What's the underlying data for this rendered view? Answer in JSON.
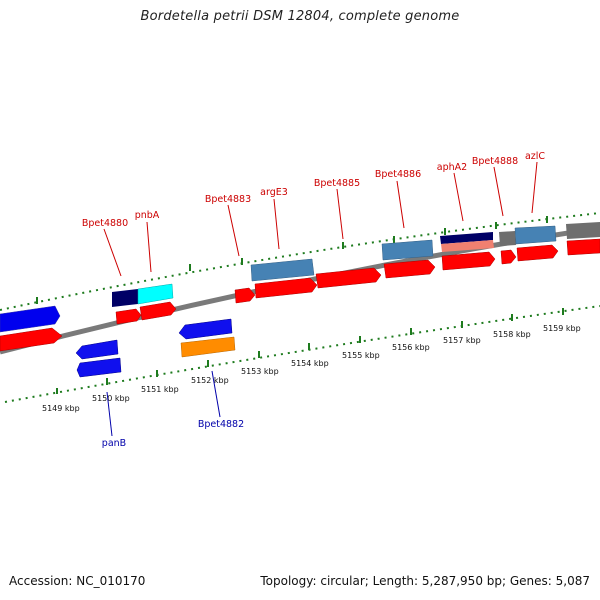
{
  "title": "Bordetella petrii DSM 12804, complete genome",
  "footer": {
    "accession": "Accession: NC_010170",
    "topology": "Topology: circular; Length: 5,287,950 bp; Genes: 5,087"
  },
  "colors": {
    "backbone": "#7f7f7f",
    "tick": "#1e7b1e",
    "fwd_label": "#cc0000",
    "rev_label": "#0000aa"
  },
  "scale_labels": {
    "fwd": [
      "5159 kbp",
      "5158 kbp",
      "5157 kbp",
      "5156 kbp",
      "5155 kbp",
      "5154 kbp",
      "5153 kbp",
      "5152 kbp",
      "5151 kbp",
      "5150 kbp",
      "5149 kbp"
    ]
  },
  "gene_labels": {
    "Bpet4880": "Bpet4880",
    "pnbA": "pnbA",
    "Bpet4883": "Bpet4883",
    "argE3": "argE3",
    "Bpet4885": "Bpet4885",
    "Bpet4886": "Bpet4886",
    "aphA2": "aphA2",
    "Bpet4888": "Bpet4888",
    "azlC": "azlC",
    "panB": "panB",
    "Bpet4882": "Bpet4882"
  }
}
